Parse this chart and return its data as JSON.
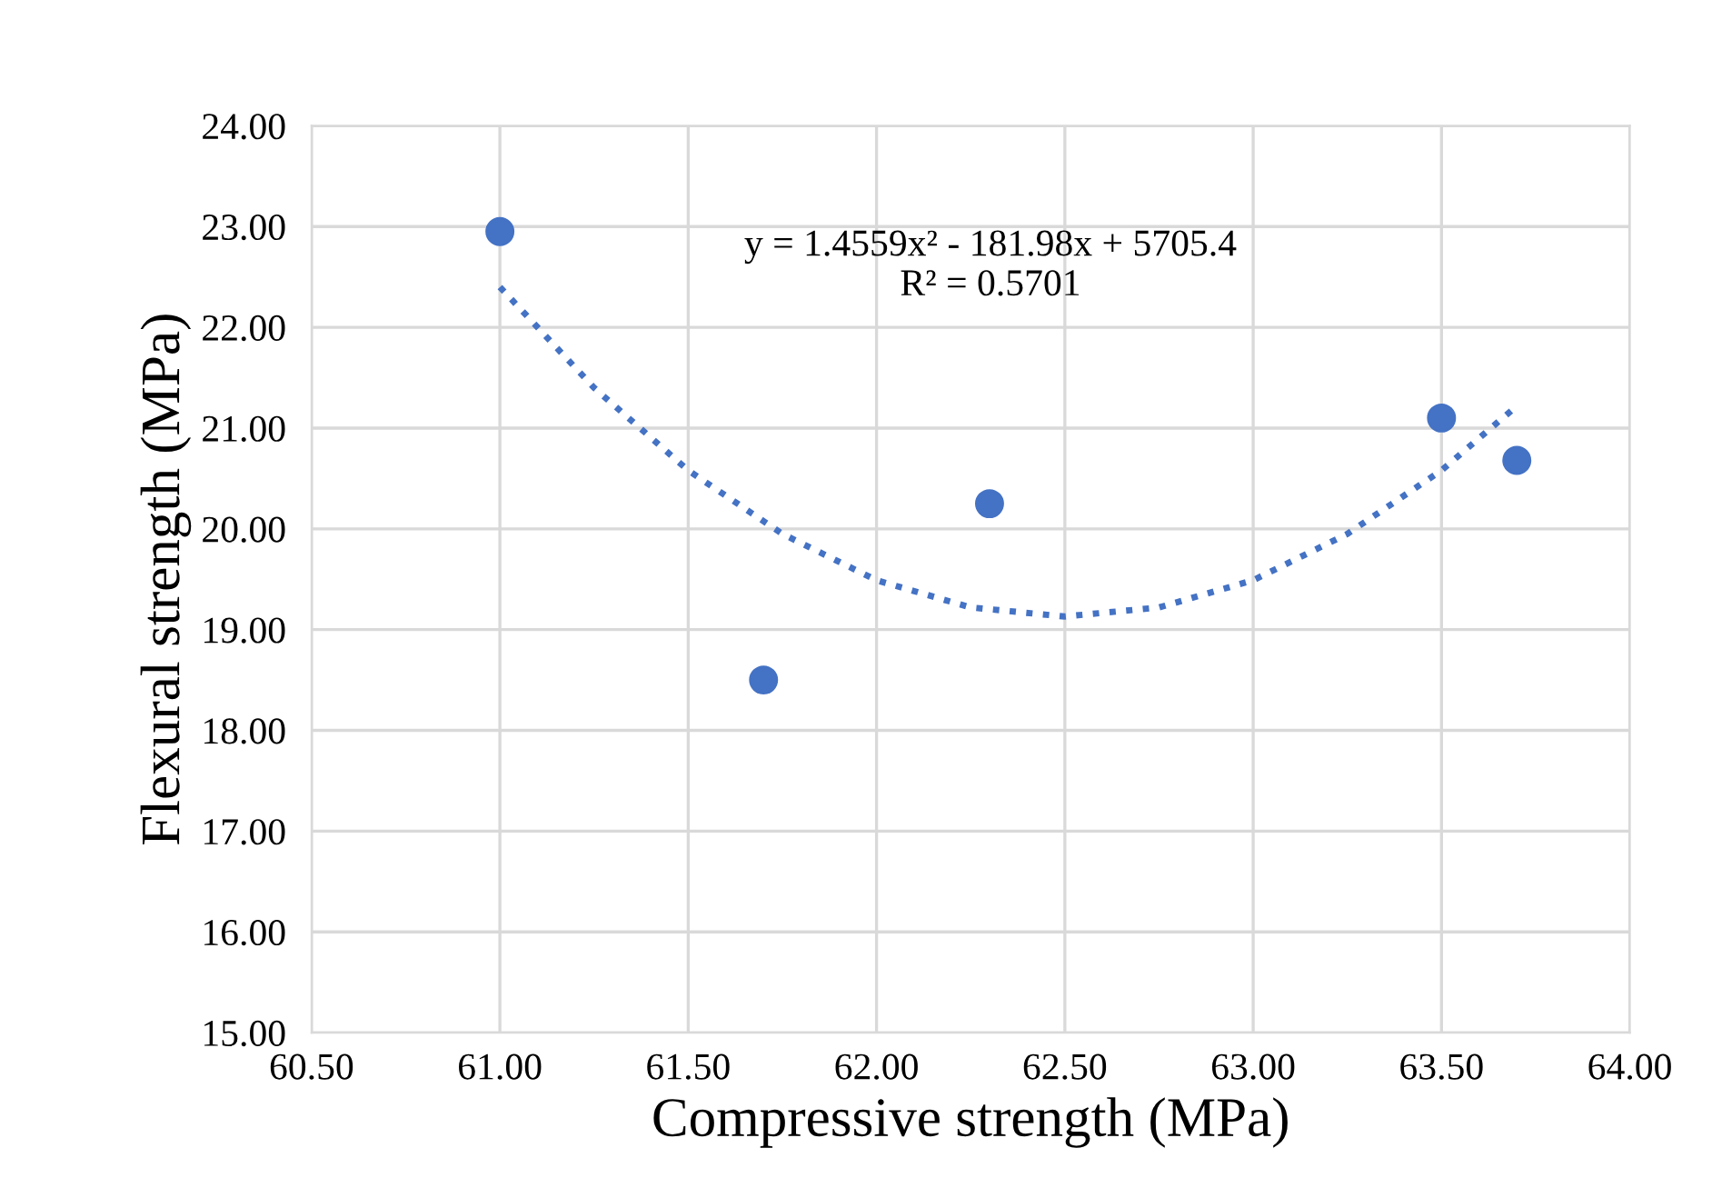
{
  "chart_data": {
    "type": "scatter",
    "xlabel": "Compressive strength (MPa)",
    "ylabel": "Flexural strength (MPa)",
    "series": [
      {
        "color": "#4472c4",
        "marker": "circle",
        "x": [
          61.0,
          61.7,
          62.3,
          63.5,
          63.7
        ],
        "values": [
          22.95,
          18.5,
          20.25,
          21.1,
          20.68
        ]
      },
      {
        "type": "line",
        "color": "#4472c4",
        "line_style": "dotted",
        "marker": "none",
        "x": [
          61.0,
          61.25,
          61.5,
          61.75,
          62.0,
          62.25,
          62.5,
          62.75,
          63.0,
          63.25,
          63.5,
          63.7
        ],
        "values": [
          22.4,
          21.4,
          20.58,
          19.95,
          19.49,
          19.22,
          19.13,
          19.22,
          19.49,
          19.95,
          20.58,
          21.22
        ]
      }
    ],
    "annotations": [
      "y = 1.4559x² - 181.98x + 5705.4\nR² = 0.5701"
    ],
    "xlim": [
      60.5,
      64.0
    ],
    "ylim": [
      15.0,
      24.0
    ],
    "xticks": [
      {
        "value": 60.5,
        "label": "60.50"
      },
      {
        "value": 61.0,
        "label": "61.00"
      },
      {
        "value": 61.5,
        "label": "61.50"
      },
      {
        "value": 62.0,
        "label": "62.00"
      },
      {
        "value": 62.5,
        "label": "62.50"
      },
      {
        "value": 63.0,
        "label": "63.00"
      },
      {
        "value": 63.5,
        "label": "63.50"
      },
      {
        "value": 64.0,
        "label": "64.00"
      }
    ],
    "yticks": [
      {
        "value": 15,
        "label": "15.00"
      },
      {
        "value": 16,
        "label": "16.00"
      },
      {
        "value": 17,
        "label": "17.00"
      },
      {
        "value": 18,
        "label": "18.00"
      },
      {
        "value": 19,
        "label": "19.00"
      },
      {
        "value": 20,
        "label": "20.00"
      },
      {
        "value": 21,
        "label": "21.00"
      },
      {
        "value": 22,
        "label": "22.00"
      },
      {
        "value": 23,
        "label": "23.00"
      },
      {
        "value": 24,
        "label": "24.00"
      }
    ],
    "grid": true,
    "legend": false
  }
}
